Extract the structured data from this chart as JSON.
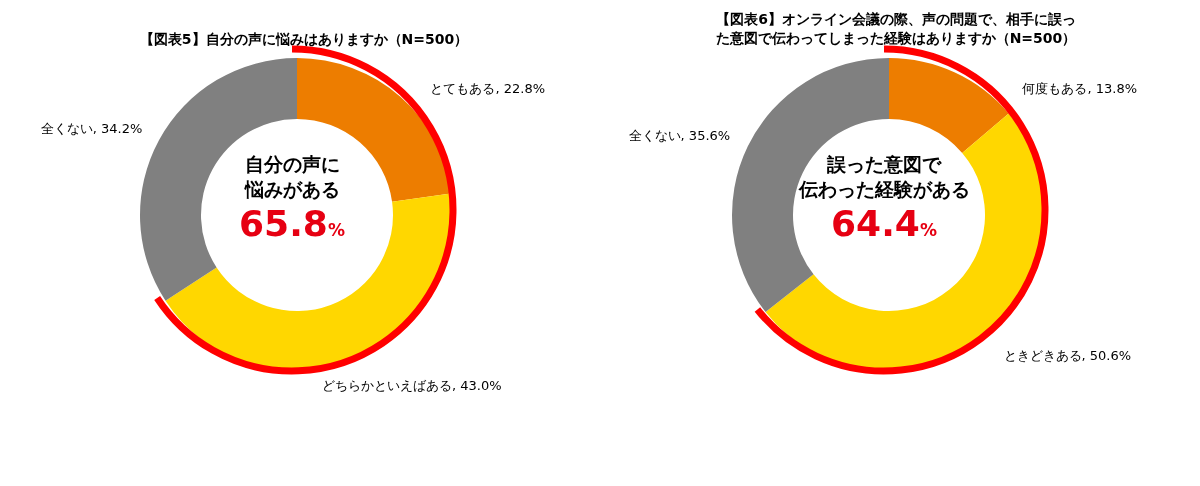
{
  "chart_data": [
    {
      "type": "donut",
      "title": "【図表5】自分の声に悩みはありますか（N=500）",
      "categories": [
        "とてもある",
        "どちらかといえばある",
        "全くない"
      ],
      "values": [
        22.8,
        43.0,
        34.2
      ],
      "value_labels": [
        "22.8%",
        "43.0%",
        "34.2%"
      ],
      "colors": [
        "#ed7d00",
        "#ffd700",
        "#808080"
      ],
      "annotations": [
        "自分の声に",
        "悩みがある",
        "65.8%"
      ]
    },
    {
      "type": "donut",
      "title": "【図表6】オンライン会議の際、声の問題で、相手に誤った意図で伝わってしまった経験はありますか（N=500）",
      "categories": [
        "何度もある",
        "ときどきある",
        "全くない"
      ],
      "values": [
        13.8,
        50.6,
        35.6
      ],
      "value_labels": [
        "13.8%",
        "50.6%",
        "35.6%"
      ],
      "colors": [
        "#ed7d00",
        "#ffd700",
        "#808080"
      ],
      "annotations": [
        "誤った意図で",
        "伝わった経験がある",
        "64.4%"
      ]
    }
  ]
}
